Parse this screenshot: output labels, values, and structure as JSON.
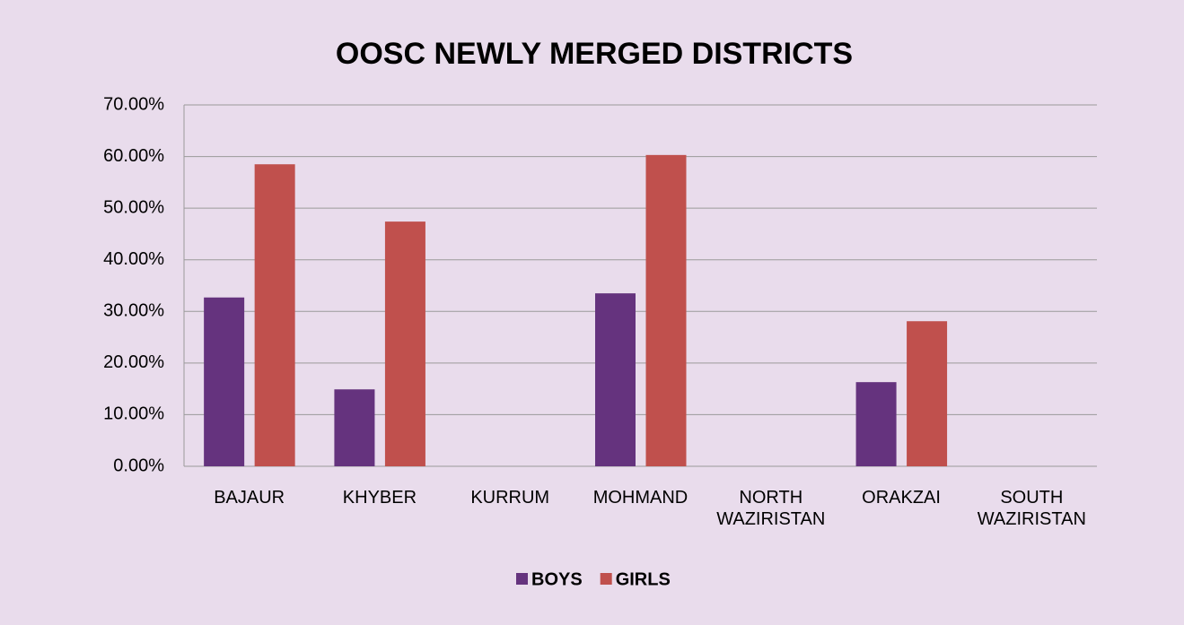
{
  "chart_data": {
    "type": "bar",
    "title": "OOSC NEWLY MERGED DISTRICTS",
    "categories": [
      "BAJAUR",
      "KHYBER",
      "KURRUM",
      "MOHMAND",
      "NORTH WAZIRISTAN",
      "ORAKZAI",
      "SOUTH WAZIRISTAN"
    ],
    "series": [
      {
        "name": "BOYS",
        "color": "#65337e",
        "values": [
          32.7,
          14.9,
          0,
          33.5,
          0,
          16.3,
          0
        ]
      },
      {
        "name": "GIRLS",
        "color": "#c0504d",
        "values": [
          58.5,
          47.4,
          0,
          60.3,
          0,
          28.1,
          0
        ]
      }
    ],
    "ylim": [
      0,
      70
    ],
    "yticks": [
      {
        "value": 0,
        "label": "0.00%"
      },
      {
        "value": 10,
        "label": "10.00%"
      },
      {
        "value": 20,
        "label": "20.00%"
      },
      {
        "value": 30,
        "label": "30.00%"
      },
      {
        "value": 40,
        "label": "40.00%"
      },
      {
        "value": 50,
        "label": "50.00%"
      },
      {
        "value": 60,
        "label": "60.00%"
      },
      {
        "value": 70,
        "label": "70.00%"
      }
    ],
    "grid": true,
    "legend": "bottom"
  }
}
